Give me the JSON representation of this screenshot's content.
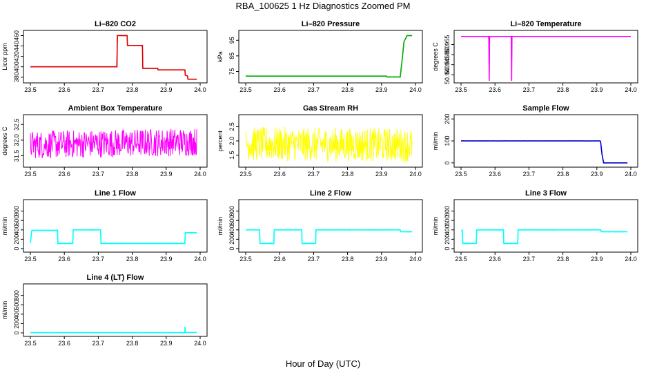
{
  "figure": {
    "title": "RBA_100625  1 Hz Diagnostics Zoomed PM",
    "xlabel": "Hour of Day (UTC)"
  },
  "chart_data": [
    {
      "type": "line",
      "title": "Li–820 CO2",
      "ylabel": "Licor ppm",
      "color": "#dd0000",
      "xlim": [
        23.5,
        24.0
      ],
      "ylim": [
        373,
        466
      ],
      "xticks": [
        23.5,
        23.6,
        23.7,
        23.8,
        23.9,
        24.0
      ],
      "yticks": [
        380,
        400,
        420,
        440,
        460
      ],
      "noise": 0.6,
      "x": [
        23.5,
        23.755,
        23.756,
        23.785,
        23.786,
        23.83,
        23.831,
        23.875,
        23.876,
        23.955,
        23.956,
        23.963,
        23.964,
        23.99
      ],
      "y": [
        400,
        400,
        460,
        460,
        441,
        441,
        397,
        397,
        394,
        394,
        384,
        382,
        376,
        376
      ]
    },
    {
      "type": "line",
      "title": "Li–820 Pressure",
      "ylabel": "kPa",
      "color": "#00aa00",
      "xlim": [
        23.5,
        24.0
      ],
      "ylim": [
        69,
        100
      ],
      "xticks": [
        23.5,
        23.6,
        23.7,
        23.8,
        23.9,
        24.0
      ],
      "yticks": [
        75,
        85,
        95
      ],
      "noise": 0.15,
      "x": [
        23.5,
        23.915,
        23.916,
        23.955,
        23.962,
        23.966,
        23.975,
        23.99
      ],
      "y": [
        72,
        72,
        71.5,
        71.5,
        85,
        94,
        98,
        98
      ]
    },
    {
      "type": "line",
      "title": "Li–820 Temperature",
      "ylabel": "degrees C",
      "color": "#ff00ff",
      "xlim": [
        23.5,
        24.0
      ],
      "ylim": [
        50.937,
        50.961
      ],
      "xticks": [
        23.5,
        23.6,
        23.7,
        23.8,
        23.9,
        24.0
      ],
      "yticks": [
        50.94,
        50.945,
        50.95,
        50.955
      ],
      "ytick_labels": [
        "50.940",
        "50.945",
        "50.950",
        "50.955"
      ],
      "noise": 0,
      "x": [
        23.5,
        23.582,
        23.583,
        23.584,
        23.648,
        23.649,
        23.65,
        24.0
      ],
      "y": [
        50.959,
        50.959,
        50.937,
        50.959,
        50.959,
        50.937,
        50.959,
        50.959
      ]
    },
    {
      "type": "line",
      "title": "Ambient Box Temperature",
      "ylabel": "degrees C",
      "color": "#ff00ff",
      "xlim": [
        23.5,
        24.0
      ],
      "ylim": [
        31.2,
        32.75
      ],
      "xticks": [
        23.5,
        23.6,
        23.7,
        23.8,
        23.9,
        24.0
      ],
      "yticks": [
        31.5,
        32.0,
        32.5
      ],
      "ytick_labels": [
        "31.5",
        "32.0",
        "32.5"
      ],
      "noise": 0.45,
      "noise_mode": "hf",
      "x": [
        23.5,
        23.99
      ],
      "y": [
        31.85,
        31.95
      ]
    },
    {
      "type": "line",
      "title": "Gas Stream RH",
      "ylabel": "percent",
      "color": "#ffff00",
      "xlim": [
        23.5,
        24.0
      ],
      "ylim": [
        1.15,
        2.85
      ],
      "xticks": [
        23.5,
        23.6,
        23.7,
        23.8,
        23.9,
        24.0
      ],
      "yticks": [
        1.5,
        2.0,
        2.5
      ],
      "ytick_labels": [
        "1.5",
        "2.0",
        "2.5"
      ],
      "noise": 0.6,
      "noise_mode": "hf",
      "x": [
        23.5,
        23.99
      ],
      "y": [
        1.9,
        1.85
      ]
    },
    {
      "type": "line",
      "title": "Sample Flow",
      "ylabel": "ml/min",
      "color": "#0000cc",
      "xlim": [
        23.5,
        24.0
      ],
      "ylim": [
        -10,
        210
      ],
      "xticks": [
        23.5,
        23.6,
        23.7,
        23.8,
        23.9,
        24.0
      ],
      "yticks": [
        0,
        100,
        200
      ],
      "noise": 1.2,
      "x": [
        23.5,
        23.91,
        23.911,
        23.915,
        23.92,
        23.99
      ],
      "y": [
        100,
        100,
        97,
        40,
        0,
        0
      ]
    },
    {
      "type": "line",
      "title": "Line 1 Flow",
      "ylabel": "ml/min",
      "color": "#00ffff",
      "xlim": [
        23.5,
        24.0
      ],
      "ylim": [
        -30,
        1000
      ],
      "xticks": [
        23.5,
        23.6,
        23.7,
        23.8,
        23.9,
        24.0
      ],
      "yticks": [
        0,
        200,
        400,
        600,
        800
      ],
      "noise": 12,
      "x": [
        23.5,
        23.504,
        23.505,
        23.58,
        23.581,
        23.625,
        23.626,
        23.707,
        23.708,
        23.955,
        23.956,
        23.99
      ],
      "y": [
        120,
        380,
        390,
        390,
        110,
        110,
        400,
        400,
        110,
        110,
        340,
        340
      ]
    },
    {
      "type": "line",
      "title": "Line 2 Flow",
      "ylabel": "ml/min",
      "color": "#00ffff",
      "xlim": [
        23.5,
        24.0
      ],
      "ylim": [
        -30,
        1000
      ],
      "xticks": [
        23.5,
        23.6,
        23.7,
        23.8,
        23.9,
        24.0
      ],
      "yticks": [
        0,
        200,
        400,
        600,
        800
      ],
      "noise": 12,
      "x": [
        23.5,
        23.541,
        23.542,
        23.583,
        23.584,
        23.665,
        23.666,
        23.706,
        23.707,
        23.955,
        23.956,
        23.99
      ],
      "y": [
        400,
        400,
        110,
        110,
        400,
        400,
        110,
        110,
        400,
        400,
        360,
        360
      ]
    },
    {
      "type": "line",
      "title": "Line 3 Flow",
      "ylabel": "ml/min",
      "color": "#00ffff",
      "xlim": [
        23.5,
        24.0
      ],
      "ylim": [
        -30,
        1000
      ],
      "xticks": [
        23.5,
        23.6,
        23.7,
        23.8,
        23.9,
        24.0
      ],
      "yticks": [
        0,
        200,
        400,
        600,
        800
      ],
      "noise": 12,
      "x": [
        23.5,
        23.504,
        23.505,
        23.545,
        23.546,
        23.625,
        23.626,
        23.667,
        23.668,
        23.912,
        23.913,
        23.99
      ],
      "y": [
        390,
        390,
        110,
        110,
        400,
        400,
        110,
        110,
        400,
        400,
        360,
        360
      ]
    },
    {
      "type": "line",
      "title": "Line 4 (LT) Flow",
      "ylabel": "ml/min",
      "color": "#00ffff",
      "xlim": [
        23.5,
        24.0
      ],
      "ylim": [
        -30,
        1000
      ],
      "xticks": [
        23.5,
        23.6,
        23.7,
        23.8,
        23.9,
        24.0
      ],
      "yticks": [
        0,
        200,
        400,
        600,
        800
      ],
      "noise": 3,
      "x": [
        23.5,
        23.955,
        23.9555,
        23.956,
        23.957,
        23.99
      ],
      "y": [
        5,
        5,
        130,
        40,
        10,
        10
      ]
    }
  ]
}
